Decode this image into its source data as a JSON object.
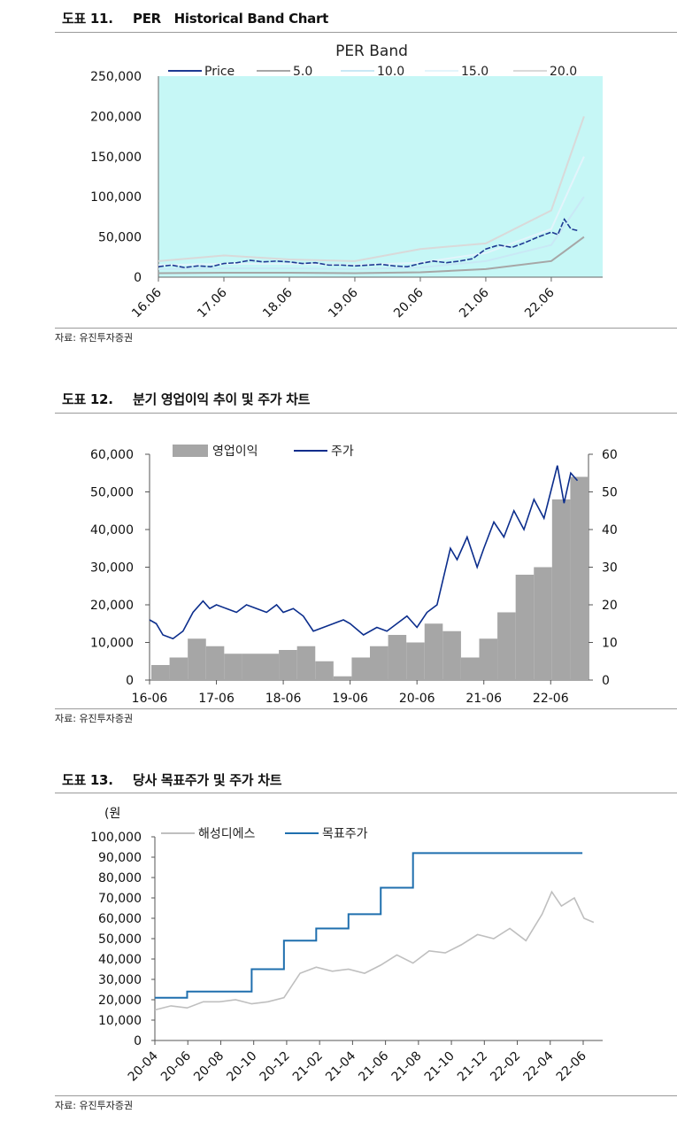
{
  "charts": [
    {
      "figure_no": "도표 11.",
      "figure_title": "PER   Historical Band Chart",
      "source": "자료: 유진투자증권"
    },
    {
      "figure_no": "도표 12.",
      "figure_title": "분기 영업이익 추이 및 주가 차트",
      "source": "자료: 유진투자증권"
    },
    {
      "figure_no": "도표 13.",
      "figure_title": "당사 목표주가 및 주가 차트",
      "source": "자료: 유진투자증권"
    }
  ],
  "colors": {
    "price_navy": "#1f3a93",
    "plot_bg_cyan": "#c6f7f6",
    "per5": "#a6a6a6",
    "per10": "#c9e8f5",
    "per15": "#e3f4fb",
    "per20": "#d9d9d9",
    "op_profit_bar": "#a6a6a6",
    "price_line12": "#0b2d8c",
    "stock_gray": "#bfbfbf",
    "target_blue": "#1f6fae"
  },
  "chart_data": [
    {
      "type": "line",
      "title": "PER Band",
      "x_ticks": [
        "16.06",
        "17.06",
        "18.06",
        "19.06",
        "20.06",
        "21.06",
        "22.06"
      ],
      "ylim": [
        0,
        250000
      ],
      "y_ticks": [
        "250,000",
        "200,000",
        "150,000",
        "100,000",
        "50,000",
        "0"
      ],
      "legend_position": "top",
      "band_x": [
        0,
        1,
        2,
        3,
        4,
        5,
        6,
        6.5
      ],
      "series": [
        {
          "name": "Price",
          "style": "dashed",
          "x": [
            0,
            0.2,
            0.4,
            0.6,
            0.8,
            1.0,
            1.2,
            1.4,
            1.6,
            1.8,
            2.0,
            2.2,
            2.4,
            2.6,
            2.8,
            3.0,
            3.2,
            3.4,
            3.6,
            3.8,
            4.0,
            4.2,
            4.4,
            4.6,
            4.8,
            5.0,
            5.2,
            5.4,
            5.6,
            5.8,
            6.0,
            6.1,
            6.2,
            6.3,
            6.4
          ],
          "values": [
            13000,
            15000,
            12000,
            14000,
            13000,
            17000,
            18000,
            21000,
            19000,
            20000,
            19000,
            17000,
            18000,
            15000,
            15000,
            14000,
            15000,
            16000,
            14000,
            13000,
            17000,
            20000,
            18000,
            20000,
            23000,
            35000,
            40000,
            37000,
            43000,
            50000,
            56000,
            53000,
            72000,
            60000,
            58000
          ]
        },
        {
          "name": "5.0",
          "values": [
            5000,
            5500,
            5500,
            5000,
            6000,
            10000,
            20000,
            50000
          ]
        },
        {
          "name": "10.0",
          "values": [
            10000,
            11000,
            11000,
            10000,
            12000,
            20000,
            40000,
            100000
          ]
        },
        {
          "name": "15.0",
          "values": [
            15000,
            16500,
            16500,
            15000,
            18000,
            30000,
            60000,
            150000
          ]
        },
        {
          "name": "20.0",
          "values": [
            20000,
            27000,
            22000,
            20000,
            35000,
            42000,
            83000,
            200000
          ]
        }
      ]
    },
    {
      "type": "bar",
      "x_ticks": [
        "16-06",
        "17-06",
        "18-06",
        "19-06",
        "20-06",
        "21-06",
        "22-06"
      ],
      "ylim_left": [
        0,
        60000
      ],
      "y_ticks_left": [
        "60,000",
        "50,000",
        "40,000",
        "30,000",
        "20,000",
        "10,000",
        "0"
      ],
      "ylim_right": [
        0,
        60
      ],
      "y_ticks_right": [
        "60",
        "50",
        "40",
        "30",
        "20",
        "10",
        "0"
      ],
      "legend_position": "top",
      "series": [
        {
          "name": "영업이익",
          "axis": "right",
          "values": [
            4,
            6,
            11,
            9,
            7,
            7,
            7,
            8,
            9,
            5,
            1,
            6,
            9,
            12,
            10,
            15,
            13,
            6,
            11,
            18,
            28,
            30,
            48,
            54
          ]
        },
        {
          "name": "주가",
          "axis": "left",
          "x": [
            0,
            0.1,
            0.2,
            0.35,
            0.5,
            0.65,
            0.8,
            0.9,
            1.0,
            1.15,
            1.3,
            1.45,
            1.6,
            1.75,
            1.9,
            2.0,
            2.15,
            2.3,
            2.45,
            2.6,
            2.75,
            2.9,
            3.0,
            3.2,
            3.4,
            3.55,
            3.7,
            3.85,
            4.0,
            4.15,
            4.3,
            4.5,
            4.6,
            4.75,
            4.9,
            5.0,
            5.15,
            5.3,
            5.45,
            5.6,
            5.75,
            5.9,
            6.0,
            6.1,
            6.2,
            6.3,
            6.4
          ],
          "values": [
            16000,
            15000,
            12000,
            11000,
            13000,
            18000,
            21000,
            19000,
            20000,
            19000,
            18000,
            20000,
            19000,
            18000,
            20000,
            18000,
            19000,
            17000,
            13000,
            14000,
            15000,
            16000,
            15000,
            12000,
            14000,
            13000,
            15000,
            17000,
            14000,
            18000,
            20000,
            35000,
            32000,
            38000,
            30000,
            35000,
            42000,
            38000,
            45000,
            40000,
            48000,
            43000,
            50000,
            57000,
            47000,
            55000,
            53000
          ]
        }
      ]
    },
    {
      "type": "line",
      "y_unit": "(원",
      "x_ticks": [
        "20-04",
        "20-06",
        "20-08",
        "20-10",
        "20-12",
        "21-02",
        "21-04",
        "21-06",
        "21-08",
        "21-10",
        "21-12",
        "22-02",
        "22-04",
        "22-06"
      ],
      "ylim": [
        0,
        100000
      ],
      "y_ticks": [
        "100,000",
        "90,000",
        "80,000",
        "70,000",
        "60,000",
        "50,000",
        "40,000",
        "30,000",
        "20,000",
        "10,000",
        "0"
      ],
      "legend_position": "top",
      "series": [
        {
          "name": "해성디에스",
          "x": [
            0,
            0.5,
            1,
            1.5,
            2,
            2.5,
            3,
            3.5,
            4,
            4.5,
            5,
            5.5,
            6,
            6.5,
            7,
            7.5,
            8,
            8.5,
            9,
            9.5,
            10,
            10.5,
            11,
            11.5,
            12,
            12.3,
            12.6,
            13,
            13.3,
            13.6
          ],
          "values": [
            15000,
            17000,
            16000,
            19000,
            19000,
            20000,
            18000,
            19000,
            21000,
            33000,
            36000,
            34000,
            35000,
            33000,
            37000,
            42000,
            38000,
            44000,
            43000,
            47000,
            52000,
            50000,
            55000,
            49000,
            62000,
            73000,
            66000,
            70000,
            60000,
            58000
          ]
        },
        {
          "name": "목표주가",
          "x": [
            0,
            2,
            2,
            6,
            6,
            8,
            8,
            10,
            10,
            12,
            12,
            14,
            14,
            16,
            16,
            18,
            18,
            20,
            20,
            22,
            22,
            24,
            24,
            26.5
          ],
          "x_scale": 0.5,
          "values": [
            21000,
            21000,
            24000,
            24000,
            35000,
            35000,
            49000,
            49000,
            55000,
            55000,
            62000,
            62000,
            75000,
            75000,
            92000,
            92000,
            92000,
            92000,
            92000,
            92000,
            92000,
            92000,
            92000,
            92000
          ]
        }
      ]
    }
  ]
}
